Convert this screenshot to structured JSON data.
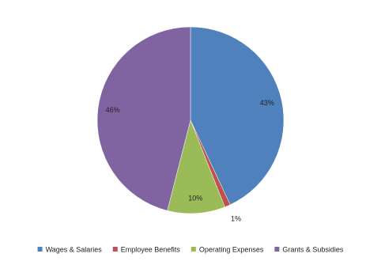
{
  "chart_data": {
    "type": "pie",
    "categories": [
      "Wages & Salaries",
      "Employee Benefits",
      "Operating Expenses",
      "Grants & Subsidies"
    ],
    "values": [
      43,
      1,
      10,
      46
    ],
    "value_labels": [
      "43%",
      "1%",
      "10%",
      "46%"
    ],
    "colors": [
      "#4f81bd",
      "#c0504d",
      "#9bbb59",
      "#8064a2"
    ],
    "legend": "bottom"
  }
}
